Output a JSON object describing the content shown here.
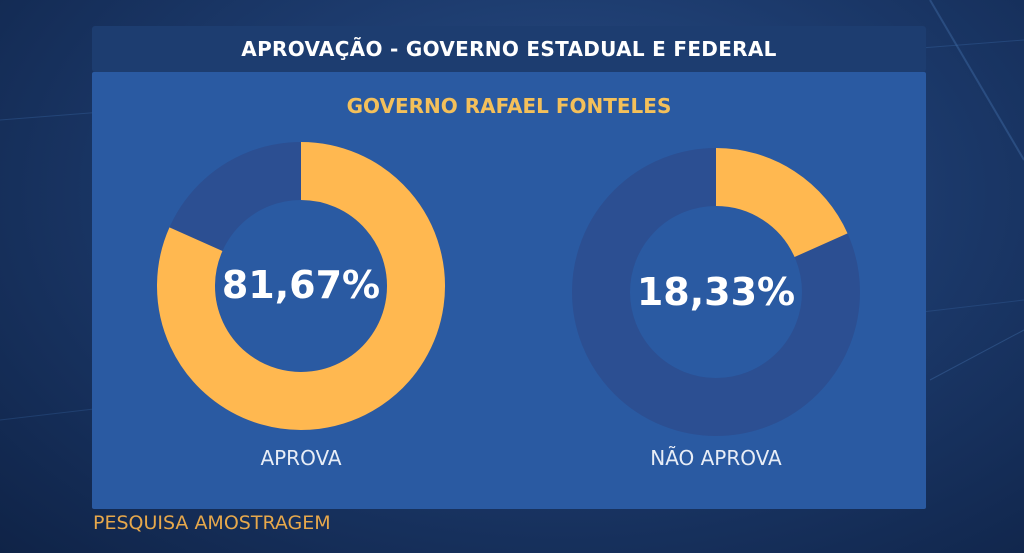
{
  "header": {
    "title": "APROVAÇÃO - GOVERNO ESTADUAL E FEDERAL"
  },
  "footer": {
    "source": "PESQUISA AMOSTRAGEM"
  },
  "colors": {
    "highlight": "#ffb850",
    "remainder": "#2c4f92",
    "subtitle": "#f4c05a",
    "source": "#e7a84b"
  },
  "chart_data": {
    "type": "pie",
    "subtitle": "GOVERNO RAFAEL FONTELES",
    "donuts": [
      {
        "category": "APROVA",
        "value": 81.67,
        "label": "81,67%"
      },
      {
        "category": "NÃO APROVA",
        "value": 18.33,
        "label": "18,33%"
      }
    ]
  }
}
